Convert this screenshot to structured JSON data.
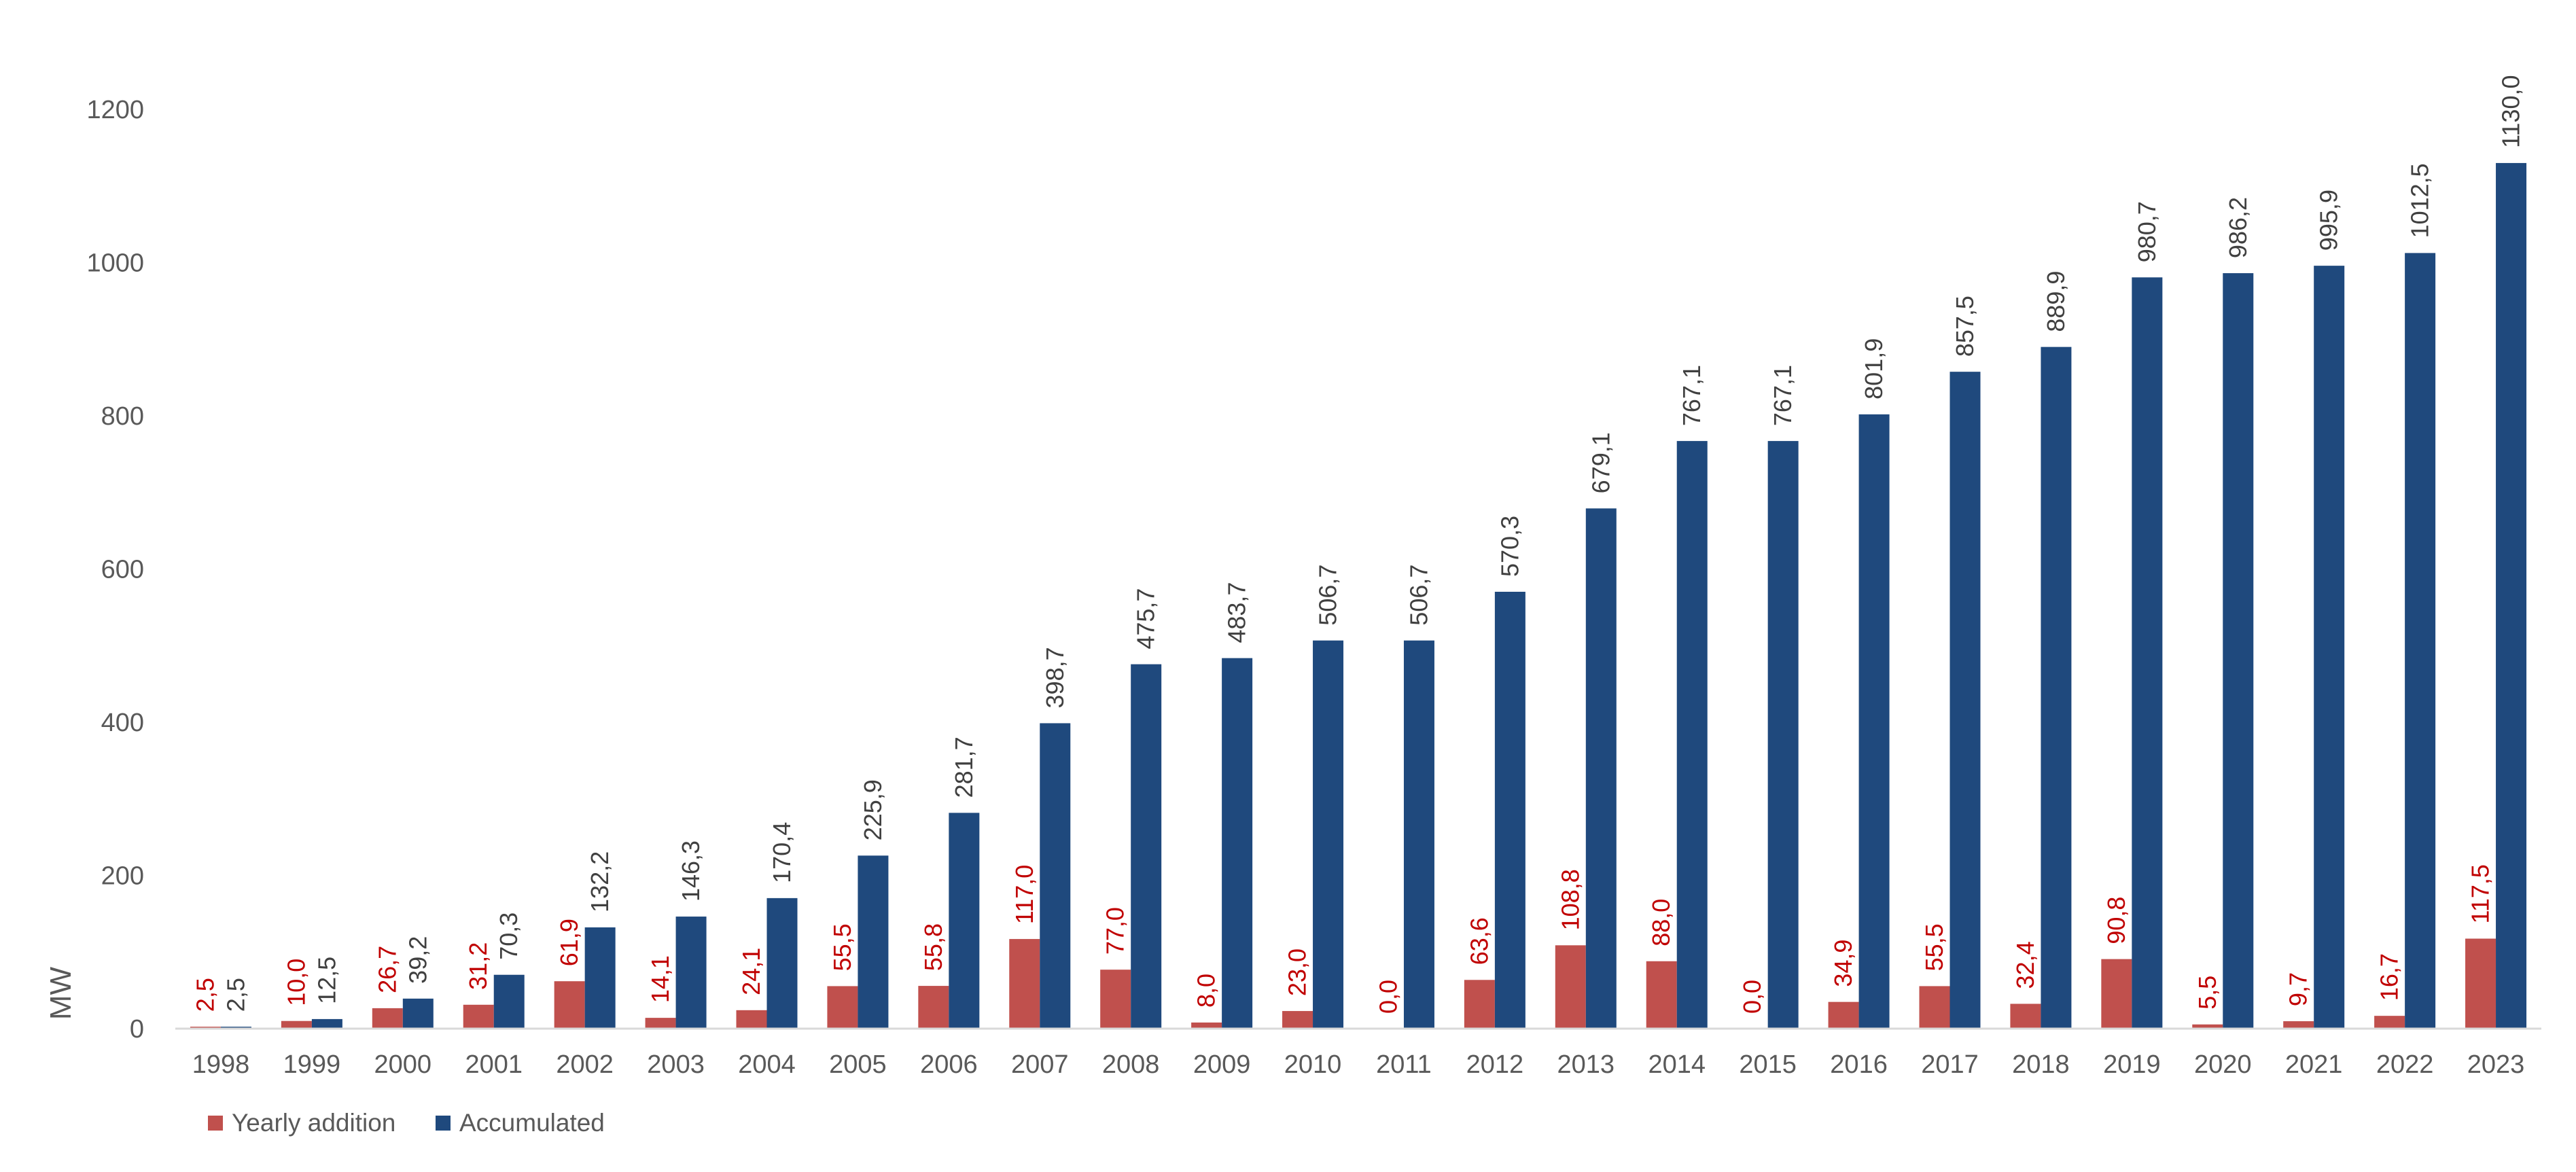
{
  "chart_data": {
    "type": "bar",
    "title": "",
    "xlabel": "",
    "ylabel": "MW",
    "ylim": [
      0,
      1200
    ],
    "yticks": [
      "0",
      "200",
      "400",
      "600",
      "800",
      "1000",
      "1200"
    ],
    "grid": false,
    "legend_position": "bottom-left",
    "categories": [
      "1998",
      "1999",
      "2000",
      "2001",
      "2002",
      "2003",
      "2004",
      "2005",
      "2006",
      "2007",
      "2008",
      "2009",
      "2010",
      "2011",
      "2012",
      "2013",
      "2014",
      "2015",
      "2016",
      "2017",
      "2018",
      "2019",
      "2020",
      "2021",
      "2022",
      "2023"
    ],
    "series": [
      {
        "name": "Yearly addition",
        "color": "#C0504D",
        "label_color": "#C00000",
        "values": [
          2.5,
          10.0,
          26.7,
          31.2,
          61.9,
          14.1,
          24.1,
          55.5,
          55.8,
          117.0,
          77.0,
          8.0,
          23.0,
          0.0,
          63.6,
          108.8,
          88.0,
          0.0,
          34.9,
          55.5,
          32.4,
          90.8,
          5.5,
          9.7,
          16.7,
          117.5
        ],
        "labels": [
          "2,5",
          "10,0",
          "26,7",
          "31,2",
          "61,9",
          "14,1",
          "24,1",
          "55,5",
          "55,8",
          "117,0",
          "77,0",
          "8,0",
          "23,0",
          "0,0",
          "63,6",
          "108,8",
          "88,0",
          "0,0",
          "34,9",
          "55,5",
          "32,4",
          "90,8",
          "5,5",
          "9,7",
          "16,7",
          "117,5"
        ]
      },
      {
        "name": "Accumulated",
        "color": "#1F497D",
        "label_color": "#404040",
        "values": [
          2.5,
          12.5,
          39.2,
          70.3,
          132.2,
          146.3,
          170.4,
          225.9,
          281.7,
          398.7,
          475.7,
          483.7,
          506.7,
          506.7,
          570.3,
          679.1,
          767.1,
          767.1,
          801.9,
          857.5,
          889.9,
          980.7,
          986.2,
          995.9,
          1012.5,
          1130.0
        ],
        "labels": [
          "2,5",
          "12,5",
          "39,2",
          "70,3",
          "132,2",
          "146,3",
          "170,4",
          "225,9",
          "281,7",
          "398,7",
          "475,7",
          "483,7",
          "506,7",
          "506,7",
          "570,3",
          "679,1",
          "767,1",
          "767,1",
          "801,9",
          "857,5",
          "889,9",
          "980,7",
          "986,2",
          "995,9",
          "1012,5",
          "1130,0"
        ]
      }
    ]
  }
}
